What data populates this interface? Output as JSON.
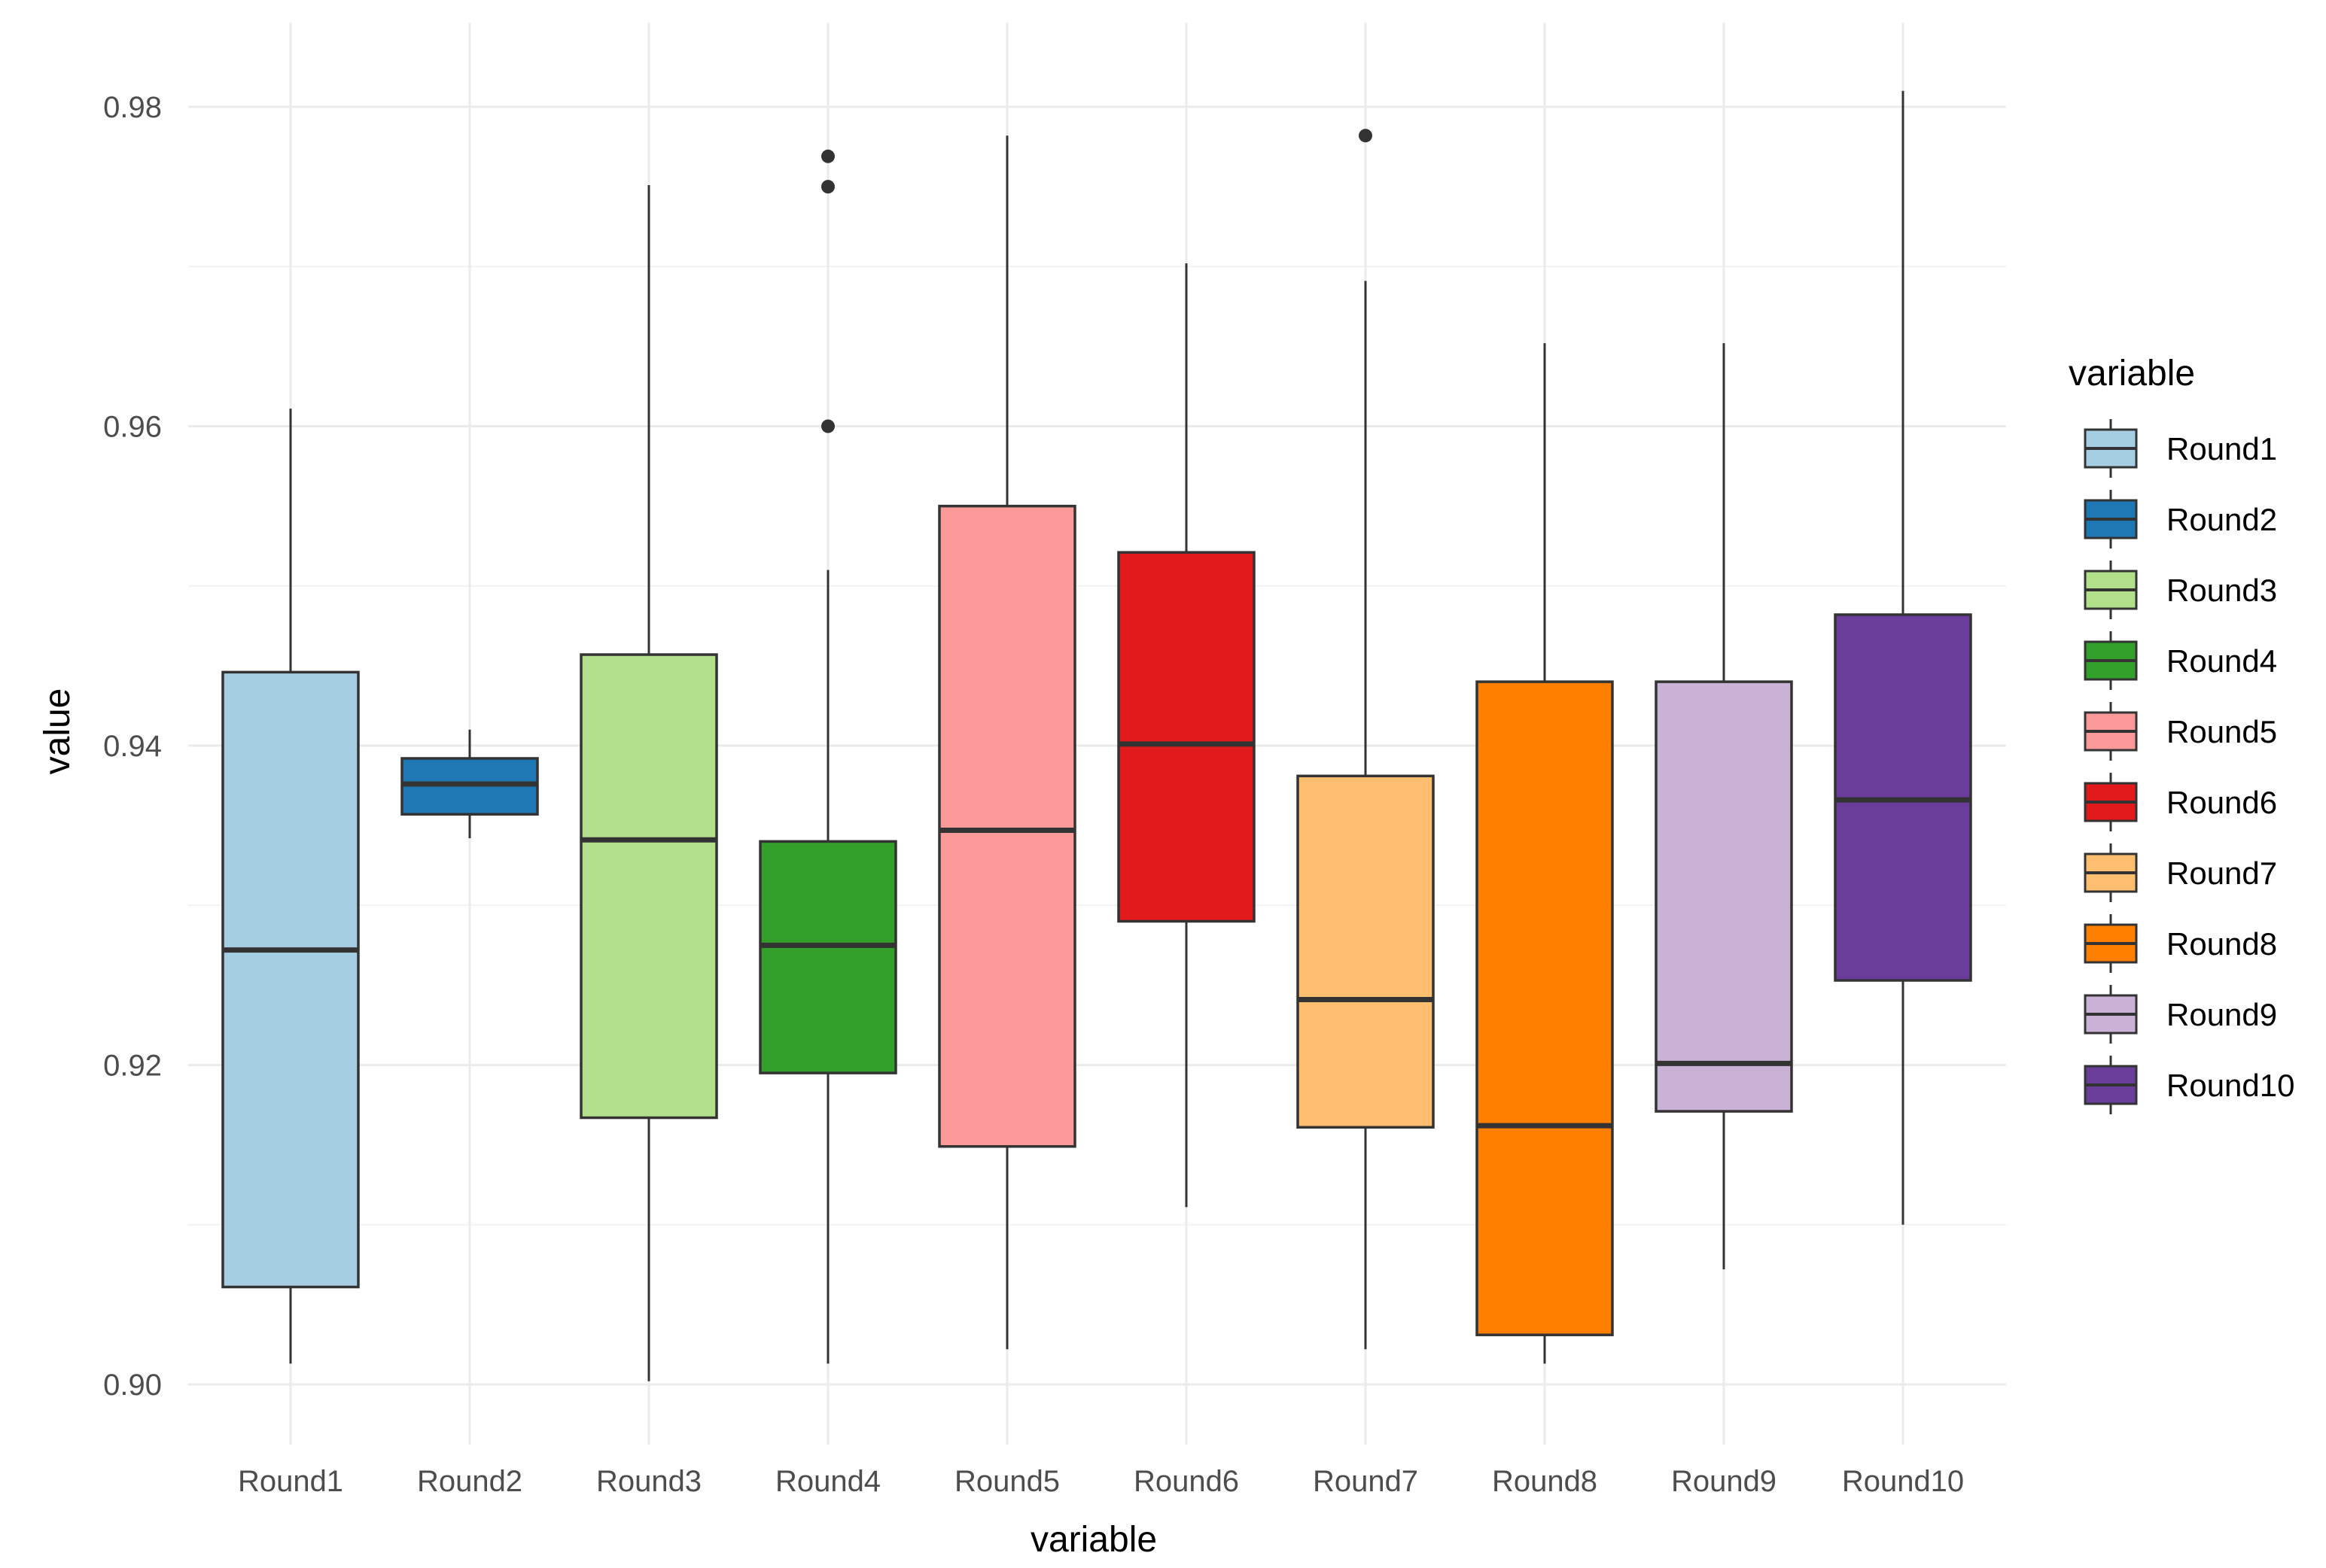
{
  "chart_data": {
    "type": "boxplot",
    "xlabel": "variable",
    "ylabel": "value",
    "ylim": [
      0.894,
      0.985
    ],
    "yticks": [
      0.9,
      0.92,
      0.94,
      0.96,
      0.98
    ],
    "ytick_labels": [
      "0.90",
      "0.92",
      "0.94",
      "0.96",
      "0.98"
    ],
    "grid": true,
    "legend": {
      "title": "variable",
      "position": "right"
    },
    "series": [
      {
        "name": "Round1",
        "color": "#A6CEE3",
        "min": 0.9013,
        "q1": 0.9061,
        "median": 0.9272,
        "q3": 0.9446,
        "max": 0.9611,
        "outliers": []
      },
      {
        "name": "Round2",
        "color": "#1F78B4",
        "min": 0.9342,
        "q1": 0.9357,
        "median": 0.9376,
        "q3": 0.9392,
        "max": 0.941,
        "outliers": []
      },
      {
        "name": "Round3",
        "color": "#B2DF8A",
        "min": 0.9002,
        "q1": 0.9167,
        "median": 0.9341,
        "q3": 0.9457,
        "max": 0.9751,
        "outliers": []
      },
      {
        "name": "Round4",
        "color": "#33A02C",
        "min": 0.9013,
        "q1": 0.9195,
        "median": 0.9275,
        "q3": 0.934,
        "max": 0.951,
        "outliers": [
          0.96,
          0.975,
          0.9769
        ]
      },
      {
        "name": "Round5",
        "color": "#FB9A99",
        "min": 0.9022,
        "q1": 0.9149,
        "median": 0.9347,
        "q3": 0.955,
        "max": 0.9782,
        "outliers": []
      },
      {
        "name": "Round6",
        "color": "#E31A1C",
        "min": 0.9111,
        "q1": 0.929,
        "median": 0.9401,
        "q3": 0.9521,
        "max": 0.9702,
        "outliers": []
      },
      {
        "name": "Round7",
        "color": "#FDBF6F",
        "min": 0.9022,
        "q1": 0.9161,
        "median": 0.9241,
        "q3": 0.9381,
        "max": 0.9691,
        "outliers": [
          0.9782
        ]
      },
      {
        "name": "Round8",
        "color": "#FF7F00",
        "min": 0.9013,
        "q1": 0.9031,
        "median": 0.9162,
        "q3": 0.944,
        "max": 0.9652,
        "outliers": []
      },
      {
        "name": "Round9",
        "color": "#CAB2D6",
        "min": 0.9072,
        "q1": 0.9171,
        "median": 0.9201,
        "q3": 0.944,
        "max": 0.9652,
        "outliers": []
      },
      {
        "name": "Round10",
        "color": "#6A3D9A",
        "min": 0.91,
        "q1": 0.9253,
        "median": 0.9366,
        "q3": 0.9482,
        "max": 0.981,
        "outliers": []
      }
    ]
  }
}
